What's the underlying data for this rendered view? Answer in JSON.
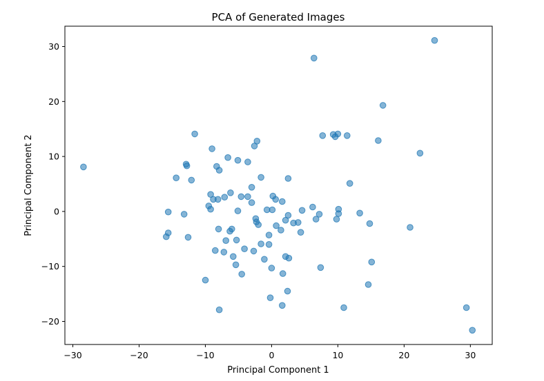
{
  "chart_data": {
    "type": "scatter",
    "title": "PCA of Generated Images",
    "xlabel": "Principal Component 1",
    "ylabel": "Principal Component 2",
    "xlim": [
      -31.2,
      33.3
    ],
    "ylim": [
      -24.2,
      33.7
    ],
    "xticks": [
      -30,
      -20,
      -10,
      0,
      10,
      20,
      30
    ],
    "yticks": [
      -20,
      -10,
      0,
      10,
      20,
      30
    ],
    "xtick_labels": [
      "−30",
      "−20",
      "−10",
      "0",
      "10",
      "20",
      "30"
    ],
    "ytick_labels": [
      "−20",
      "−10",
      "0",
      "10",
      "20",
      "30"
    ],
    "grid": false,
    "color": "#1f77b4",
    "points": [
      [
        24.6,
        31.1
      ],
      [
        6.4,
        27.9
      ],
      [
        16.8,
        19.3
      ],
      [
        9.3,
        14.0
      ],
      [
        10.0,
        14.1
      ],
      [
        9.6,
        13.6
      ],
      [
        7.7,
        13.8
      ],
      [
        11.4,
        13.8
      ],
      [
        16.1,
        12.9
      ],
      [
        22.4,
        10.6
      ],
      [
        -11.6,
        14.1
      ],
      [
        -9.0,
        11.4
      ],
      [
        -2.2,
        12.8
      ],
      [
        -2.6,
        11.9
      ],
      [
        -28.4,
        8.1
      ],
      [
        -12.9,
        8.6
      ],
      [
        -12.8,
        8.3
      ],
      [
        -6.6,
        9.8
      ],
      [
        -5.1,
        9.3
      ],
      [
        -3.6,
        9.0
      ],
      [
        -8.3,
        8.2
      ],
      [
        -7.9,
        7.5
      ],
      [
        -14.4,
        6.1
      ],
      [
        -12.1,
        5.7
      ],
      [
        -1.6,
        6.2
      ],
      [
        2.5,
        6.0
      ],
      [
        11.8,
        5.1
      ],
      [
        -3.0,
        4.4
      ],
      [
        -6.2,
        3.4
      ],
      [
        -9.2,
        3.1
      ],
      [
        -8.8,
        2.2
      ],
      [
        -8.1,
        2.2
      ],
      [
        -7.1,
        2.6
      ],
      [
        -4.6,
        2.7
      ],
      [
        -3.6,
        2.7
      ],
      [
        0.2,
        2.8
      ],
      [
        0.6,
        2.2
      ],
      [
        1.6,
        1.8
      ],
      [
        -3.0,
        1.6
      ],
      [
        -9.5,
        1.0
      ],
      [
        -9.2,
        0.4
      ],
      [
        -5.1,
        0.1
      ],
      [
        -0.7,
        0.3
      ],
      [
        0.1,
        0.3
      ],
      [
        4.6,
        0.2
      ],
      [
        6.2,
        0.8
      ],
      [
        10.1,
        0.4
      ],
      [
        -15.6,
        -0.1
      ],
      [
        -13.2,
        -0.5
      ],
      [
        2.5,
        -0.7
      ],
      [
        7.2,
        -0.5
      ],
      [
        10.1,
        -0.4
      ],
      [
        13.3,
        -0.3
      ],
      [
        -2.4,
        -1.3
      ],
      [
        -2.3,
        -1.9
      ],
      [
        -2.0,
        -2.4
      ],
      [
        2.1,
        -1.6
      ],
      [
        3.3,
        -2.1
      ],
      [
        4.0,
        -2.0
      ],
      [
        6.7,
        -1.4
      ],
      [
        9.8,
        -1.4
      ],
      [
        14.8,
        -2.2
      ],
      [
        20.9,
        -2.9
      ],
      [
        0.7,
        -2.6
      ],
      [
        1.4,
        -3.4
      ],
      [
        4.4,
        -3.8
      ],
      [
        -8.0,
        -3.2
      ],
      [
        -6.0,
        -3.2
      ],
      [
        -6.3,
        -3.6
      ],
      [
        -15.6,
        -3.9
      ],
      [
        -15.9,
        -4.6
      ],
      [
        -12.6,
        -4.7
      ],
      [
        -0.4,
        -4.3
      ],
      [
        -6.9,
        -5.3
      ],
      [
        -5.3,
        -5.2
      ],
      [
        -1.6,
        -5.9
      ],
      [
        -0.4,
        -6.0
      ],
      [
        -4.1,
        -6.8
      ],
      [
        -2.7,
        -7.2
      ],
      [
        -8.5,
        -7.1
      ],
      [
        -7.2,
        -7.4
      ],
      [
        -5.8,
        -8.2
      ],
      [
        2.1,
        -8.2
      ],
      [
        2.6,
        -8.5
      ],
      [
        -1.1,
        -8.7
      ],
      [
        -5.4,
        -9.7
      ],
      [
        15.1,
        -9.2
      ],
      [
        7.4,
        -10.2
      ],
      [
        0.0,
        -10.3
      ],
      [
        1.7,
        -11.3
      ],
      [
        -4.5,
        -11.4
      ],
      [
        -10.0,
        -12.5
      ],
      [
        14.6,
        -13.3
      ],
      [
        2.4,
        -14.5
      ],
      [
        -0.2,
        -15.7
      ],
      [
        1.6,
        -17.1
      ],
      [
        10.9,
        -17.5
      ],
      [
        29.4,
        -17.5
      ],
      [
        -7.9,
        -17.9
      ],
      [
        30.3,
        -21.6
      ]
    ]
  }
}
